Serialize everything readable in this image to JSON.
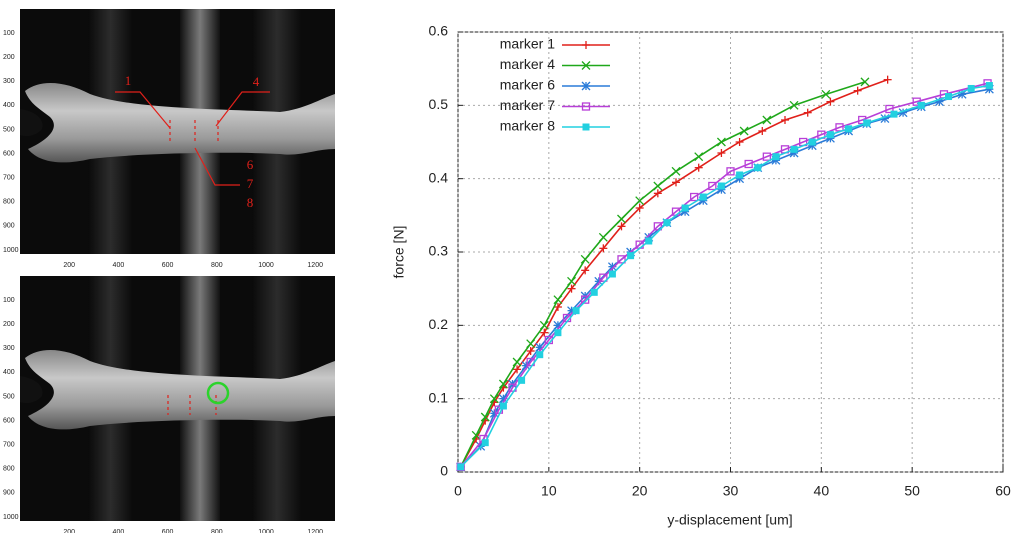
{
  "chart_data": {
    "type": "line",
    "xlabel": "y-displacement [um]",
    "ylabel": "force [N]",
    "xlim": [
      0,
      60
    ],
    "ylim": [
      0,
      0.6
    ],
    "xticks": [
      0,
      10,
      20,
      30,
      40,
      50,
      60
    ],
    "yticks": [
      0,
      0.1,
      0.2,
      0.3,
      0.4,
      0.5,
      0.6
    ],
    "grid": true,
    "legend": "upper left",
    "series": [
      {
        "name": "marker 1",
        "color": "#e0201a",
        "marker": "plus",
        "x": [
          0.3,
          2,
          3,
          4,
          5,
          6.5,
          8,
          9.5,
          11,
          12.5,
          14,
          16,
          18,
          20,
          22,
          24,
          26.5,
          29,
          31,
          33.5,
          36,
          38.5,
          41,
          44,
          47.3
        ],
        "values": [
          0.007,
          0.045,
          0.07,
          0.095,
          0.115,
          0.14,
          0.165,
          0.19,
          0.225,
          0.25,
          0.275,
          0.305,
          0.335,
          0.36,
          0.38,
          0.395,
          0.415,
          0.435,
          0.45,
          0.465,
          0.48,
          0.49,
          0.505,
          0.52,
          0.535
        ]
      },
      {
        "name": "marker 4",
        "color": "#1fa81a",
        "marker": "cross",
        "x": [
          0.3,
          2,
          3,
          4,
          5,
          6.5,
          8,
          9.5,
          11,
          12.5,
          14,
          16,
          18,
          20,
          22,
          24,
          26.5,
          29,
          31.5,
          34,
          37,
          40.5,
          44.8
        ],
        "values": [
          0.007,
          0.05,
          0.075,
          0.1,
          0.12,
          0.15,
          0.175,
          0.2,
          0.235,
          0.26,
          0.29,
          0.32,
          0.345,
          0.37,
          0.39,
          0.41,
          0.43,
          0.45,
          0.465,
          0.48,
          0.5,
          0.515,
          0.532
        ]
      },
      {
        "name": "marker 6",
        "color": "#2a7bd8",
        "marker": "star",
        "x": [
          0.3,
          2.5,
          4,
          5,
          6,
          7.5,
          9,
          11,
          12.5,
          14,
          15.5,
          17,
          19,
          21,
          23,
          25,
          27,
          29,
          31,
          33,
          35,
          37,
          39,
          41,
          43,
          45,
          47,
          49,
          51,
          53,
          55.5,
          58.5
        ],
        "values": [
          0.007,
          0.035,
          0.08,
          0.1,
          0.12,
          0.145,
          0.17,
          0.2,
          0.22,
          0.24,
          0.26,
          0.28,
          0.3,
          0.32,
          0.34,
          0.355,
          0.37,
          0.385,
          0.4,
          0.415,
          0.425,
          0.435,
          0.445,
          0.455,
          0.465,
          0.475,
          0.482,
          0.49,
          0.498,
          0.505,
          0.515,
          0.522
        ]
      },
      {
        "name": "marker 7",
        "color": "#b83fd8",
        "marker": "square",
        "x": [
          0.3,
          2.8,
          4.5,
          6,
          8,
          10,
          12,
          14,
          16,
          18,
          20,
          22,
          24,
          26,
          28,
          30,
          32,
          34,
          36,
          38,
          40,
          42,
          44.5,
          47.5,
          50.5,
          53.5,
          58.3
        ],
        "values": [
          0.007,
          0.045,
          0.085,
          0.115,
          0.15,
          0.18,
          0.21,
          0.235,
          0.265,
          0.29,
          0.31,
          0.335,
          0.355,
          0.375,
          0.39,
          0.41,
          0.42,
          0.43,
          0.44,
          0.45,
          0.46,
          0.47,
          0.48,
          0.495,
          0.505,
          0.515,
          0.53
        ]
      },
      {
        "name": "marker 8",
        "color": "#22d0e0",
        "marker": "filled-square",
        "x": [
          0.3,
          3,
          5,
          7,
          9,
          11,
          13,
          15,
          17,
          19,
          21,
          23,
          25,
          27,
          29,
          31,
          33,
          35,
          37,
          39,
          41,
          43,
          45,
          48,
          51,
          54,
          56.5,
          58.5
        ],
        "values": [
          0.007,
          0.04,
          0.09,
          0.125,
          0.16,
          0.19,
          0.22,
          0.245,
          0.27,
          0.295,
          0.315,
          0.34,
          0.36,
          0.375,
          0.39,
          0.405,
          0.415,
          0.43,
          0.44,
          0.45,
          0.46,
          0.468,
          0.476,
          0.488,
          0.5,
          0.512,
          0.523,
          0.527
        ]
      }
    ]
  },
  "images": [
    {
      "xticks": [
        200,
        400,
        600,
        800,
        1000,
        1200
      ],
      "yticks": [
        100,
        200,
        300,
        400,
        500,
        600,
        700,
        800,
        900,
        1000
      ],
      "annotations": [
        "1",
        "4",
        "6",
        "7",
        "8"
      ]
    },
    {
      "xticks": [
        200,
        400,
        600,
        800,
        1000,
        1200
      ],
      "yticks": [
        100,
        200,
        300,
        400,
        500,
        600,
        700,
        800,
        900,
        1000
      ]
    }
  ]
}
